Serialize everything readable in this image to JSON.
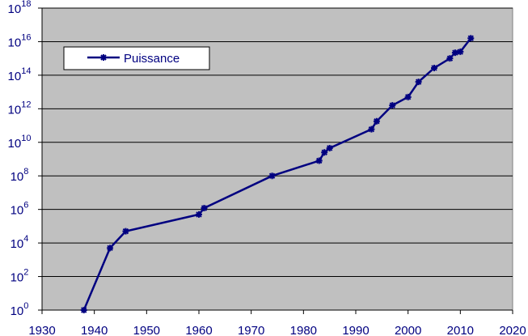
{
  "chart_data": {
    "type": "line",
    "x": [
      1938,
      1943,
      1946,
      1960,
      1961,
      1974,
      1983,
      1984,
      1985,
      1993,
      1994,
      1997,
      2000,
      2002,
      2005,
      2008,
      2009,
      2010,
      2012
    ],
    "series": [
      {
        "name": "Puissance",
        "color": "#000080",
        "values": [
          1,
          5000,
          50000,
          500000,
          1200000,
          100000000,
          800000000,
          2500000000,
          4500000000,
          60000000000,
          180000000000,
          1600000000000,
          5000000000000,
          40000000000000,
          270000000000000,
          1000000000000000,
          2200000000000000,
          2500000000000000,
          16000000000000000
        ]
      }
    ],
    "xlim": [
      1930,
      2020
    ],
    "xticks": [
      1930,
      1940,
      1950,
      1960,
      1970,
      1980,
      1990,
      2000,
      2010,
      2020
    ],
    "ylim": [
      1,
      1e+18
    ],
    "log_y": true,
    "yticks": [
      {
        "value": 1,
        "label": "10",
        "exponent": "0"
      },
      {
        "value": 100,
        "label": "10",
        "exponent": "2"
      },
      {
        "value": 10000,
        "label": "10",
        "exponent": "4"
      },
      {
        "value": 1000000,
        "label": "10",
        "exponent": "6"
      },
      {
        "value": 100000000,
        "label": "10",
        "exponent": "8"
      },
      {
        "value": 10000000000,
        "label": "10",
        "exponent": "10"
      },
      {
        "value": 1000000000000,
        "label": "10",
        "exponent": "12"
      },
      {
        "value": 100000000000000,
        "label": "10",
        "exponent": "14"
      },
      {
        "value": 10000000000000000,
        "label": "10",
        "exponent": "16"
      },
      {
        "value": 1000000000000000000,
        "label": "10",
        "exponent": "18"
      }
    ],
    "grid": true,
    "legend": "upper-left",
    "background": "#c0c0c0"
  }
}
